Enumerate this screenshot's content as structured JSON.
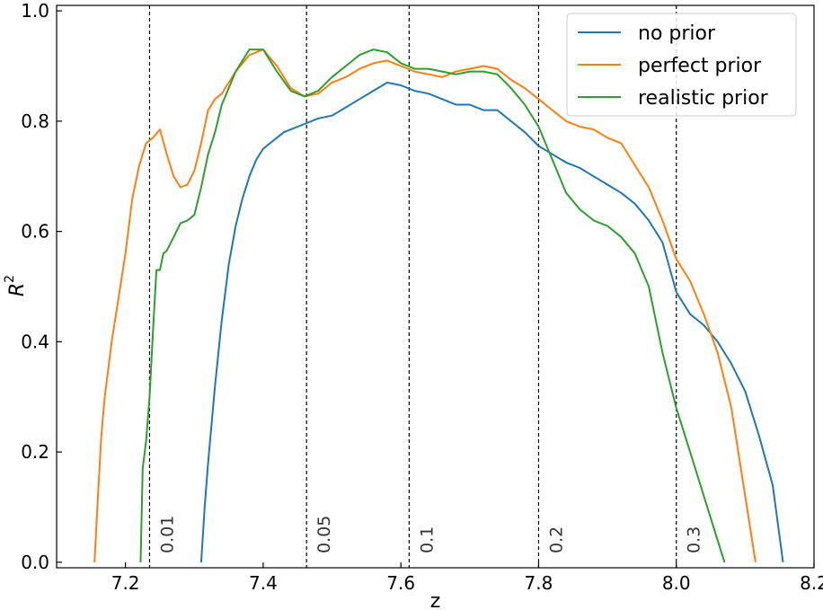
{
  "chart_data": {
    "type": "line",
    "xlabel": "z",
    "ylabel": "R",
    "ylabel_superscript": "2",
    "xlim": [
      7.1,
      8.2
    ],
    "ylim": [
      -0.01,
      1.01
    ],
    "xticks": [
      7.2,
      7.4,
      7.6,
      7.8,
      8.0,
      8.2
    ],
    "xtick_labels": [
      "7.2",
      "7.4",
      "7.6",
      "7.8",
      "8.0",
      "8.2"
    ],
    "yticks": [
      0.0,
      0.2,
      0.4,
      0.6,
      0.8,
      1.0
    ],
    "ytick_labels": [
      "0.0",
      "0.2",
      "0.4",
      "0.6",
      "0.8",
      "1.0"
    ],
    "grid": false,
    "legend_position": "top-right",
    "vertical_lines": [
      {
        "x": 7.235,
        "label": "0.01"
      },
      {
        "x": 7.463,
        "label": "0.05"
      },
      {
        "x": 7.612,
        "label": "0.1"
      },
      {
        "x": 7.8,
        "label": "0.2"
      },
      {
        "x": 8.0,
        "label": "0.3"
      }
    ],
    "series": [
      {
        "name": "no prior",
        "color": "#1f77b4",
        "x": [
          7.31,
          7.315,
          7.32,
          7.33,
          7.34,
          7.35,
          7.36,
          7.37,
          7.38,
          7.39,
          7.4,
          7.41,
          7.42,
          7.43,
          7.44,
          7.45,
          7.46,
          7.48,
          7.5,
          7.52,
          7.54,
          7.56,
          7.58,
          7.6,
          7.62,
          7.64,
          7.66,
          7.68,
          7.7,
          7.72,
          7.74,
          7.76,
          7.78,
          7.8,
          7.82,
          7.84,
          7.86,
          7.88,
          7.9,
          7.92,
          7.94,
          7.96,
          7.98,
          8.0,
          8.02,
          8.04,
          8.06,
          8.08,
          8.1,
          8.12,
          8.14,
          8.155
        ],
        "y": [
          0.0,
          0.1,
          0.18,
          0.32,
          0.44,
          0.54,
          0.61,
          0.66,
          0.7,
          0.73,
          0.75,
          0.76,
          0.77,
          0.78,
          0.785,
          0.79,
          0.795,
          0.805,
          0.81,
          0.825,
          0.84,
          0.855,
          0.87,
          0.865,
          0.855,
          0.85,
          0.84,
          0.83,
          0.83,
          0.82,
          0.82,
          0.8,
          0.78,
          0.755,
          0.74,
          0.725,
          0.715,
          0.7,
          0.685,
          0.67,
          0.65,
          0.62,
          0.58,
          0.49,
          0.45,
          0.43,
          0.4,
          0.36,
          0.31,
          0.23,
          0.14,
          0.0
        ]
      },
      {
        "name": "perfect prior",
        "color": "#ff7f0e",
        "x": [
          7.155,
          7.16,
          7.165,
          7.17,
          7.18,
          7.19,
          7.2,
          7.21,
          7.22,
          7.23,
          7.24,
          7.25,
          7.26,
          7.27,
          7.28,
          7.29,
          7.3,
          7.31,
          7.32,
          7.33,
          7.34,
          7.36,
          7.38,
          7.4,
          7.42,
          7.44,
          7.46,
          7.48,
          7.5,
          7.52,
          7.54,
          7.56,
          7.58,
          7.6,
          7.62,
          7.64,
          7.66,
          7.68,
          7.7,
          7.72,
          7.74,
          7.76,
          7.78,
          7.8,
          7.82,
          7.84,
          7.86,
          7.88,
          7.9,
          7.92,
          7.94,
          7.96,
          7.98,
          8.0,
          8.02,
          8.04,
          8.06,
          8.08,
          8.1,
          8.115
        ],
        "y": [
          0.0,
          0.12,
          0.23,
          0.3,
          0.4,
          0.48,
          0.56,
          0.66,
          0.72,
          0.76,
          0.77,
          0.785,
          0.74,
          0.7,
          0.68,
          0.685,
          0.71,
          0.76,
          0.82,
          0.84,
          0.85,
          0.89,
          0.92,
          0.93,
          0.9,
          0.86,
          0.845,
          0.85,
          0.87,
          0.88,
          0.895,
          0.905,
          0.91,
          0.9,
          0.89,
          0.885,
          0.88,
          0.89,
          0.895,
          0.9,
          0.895,
          0.875,
          0.86,
          0.84,
          0.82,
          0.8,
          0.79,
          0.785,
          0.77,
          0.76,
          0.72,
          0.68,
          0.62,
          0.55,
          0.51,
          0.45,
          0.38,
          0.28,
          0.12,
          0.0
        ]
      },
      {
        "name": "realistic prior",
        "color": "#2ca02c",
        "x": [
          7.222,
          7.225,
          7.23,
          7.235,
          7.24,
          7.245,
          7.25,
          7.255,
          7.26,
          7.27,
          7.28,
          7.29,
          7.3,
          7.31,
          7.32,
          7.33,
          7.34,
          7.36,
          7.38,
          7.4,
          7.42,
          7.44,
          7.46,
          7.48,
          7.5,
          7.52,
          7.54,
          7.56,
          7.58,
          7.6,
          7.62,
          7.64,
          7.66,
          7.68,
          7.7,
          7.72,
          7.74,
          7.76,
          7.78,
          7.8,
          7.82,
          7.84,
          7.86,
          7.88,
          7.9,
          7.92,
          7.94,
          7.96,
          7.98,
          8.0,
          8.02,
          8.04,
          8.06,
          8.07
        ],
        "y": [
          0.0,
          0.17,
          0.22,
          0.3,
          0.42,
          0.53,
          0.53,
          0.56,
          0.565,
          0.59,
          0.615,
          0.62,
          0.63,
          0.68,
          0.74,
          0.78,
          0.83,
          0.89,
          0.93,
          0.93,
          0.89,
          0.855,
          0.845,
          0.855,
          0.88,
          0.9,
          0.92,
          0.93,
          0.925,
          0.905,
          0.895,
          0.895,
          0.89,
          0.885,
          0.89,
          0.89,
          0.885,
          0.86,
          0.83,
          0.79,
          0.73,
          0.67,
          0.64,
          0.62,
          0.61,
          0.59,
          0.56,
          0.5,
          0.38,
          0.28,
          0.2,
          0.12,
          0.04,
          0.0
        ]
      }
    ]
  }
}
